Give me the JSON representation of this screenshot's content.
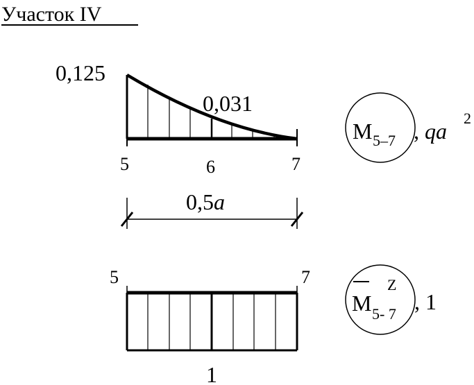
{
  "title": "Участок IV",
  "top_diagram": {
    "value_left": "0,125",
    "value_mid": "0,031",
    "node_labels": [
      "5",
      "6",
      "7"
    ],
    "span_label_num": "0,5",
    "span_label_var": "a",
    "badge": {
      "symbol": "M",
      "subscript": "5–7",
      "suffix": ", ",
      "unit_var": "qa",
      "unit_exp": "2"
    }
  },
  "bottom_diagram": {
    "node_left": "5",
    "node_right": "7",
    "value": "1",
    "badge": {
      "symbol": "M",
      "superscript": "Z",
      "subscript": "5- 7",
      "suffix": ", 1"
    }
  }
}
